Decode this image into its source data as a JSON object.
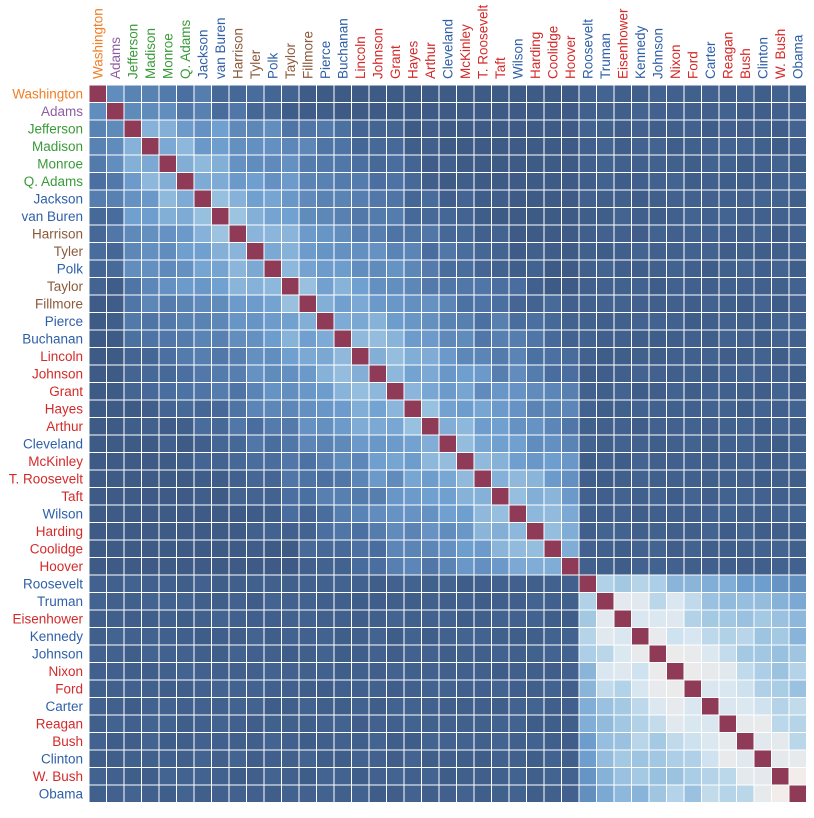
{
  "chart_data": {
    "type": "heatmap",
    "title": "",
    "xlabel": "",
    "ylabel": "",
    "grid": true,
    "legend": "none",
    "categories": [
      "Washington",
      "Adams",
      "Jefferson",
      "Madison",
      "Monroe",
      "Q. Adams",
      "Jackson",
      "van Buren",
      "Harrison",
      "Tyler",
      "Polk",
      "Taylor",
      "Fillmore",
      "Pierce",
      "Buchanan",
      "Lincoln",
      "Johnson",
      "Grant",
      "Hayes",
      "Arthur",
      "Cleveland",
      "McKinley",
      "T. Roosevelt",
      "Taft",
      "Wilson",
      "Harding",
      "Coolidge",
      "Hoover",
      "Roosevelt",
      "Truman",
      "Eisenhower",
      "Kennedy",
      "Johnson",
      "Nixon",
      "Ford",
      "Carter",
      "Reagan",
      "Bush",
      "Clinton",
      "W. Bush",
      "Obama"
    ],
    "party_of_each": [
      "none",
      "federalist",
      "dem-rep",
      "dem-rep",
      "dem-rep",
      "dem-rep",
      "democrat",
      "democrat",
      "whig",
      "whig",
      "democrat",
      "whig",
      "whig",
      "democrat",
      "democrat",
      "republican",
      "republican",
      "republican",
      "republican",
      "republican",
      "democrat",
      "republican",
      "republican",
      "republican",
      "democrat",
      "republican",
      "republican",
      "republican",
      "democrat",
      "democrat",
      "republican",
      "democrat",
      "democrat",
      "republican",
      "republican",
      "democrat",
      "republican",
      "republican",
      "democrat",
      "republican",
      "democrat"
    ],
    "party_colors": {
      "none": "#f07e26",
      "federalist": "#8e5ea2",
      "dem-rep": "#3a9a3a",
      "whig": "#8b5a3c",
      "democrat": "#2f5fa8",
      "republican": "#d42a2a"
    },
    "color_scale": {
      "stops": [
        0,
        0.2,
        0.45,
        0.62,
        0.75,
        0.85,
        1.0
      ],
      "colors": [
        "#3e5b86",
        "#4a6fa0",
        "#6f9fcf",
        "#a6cbe4",
        "#d8e7f1",
        "#f2ecea",
        "#f6c4a8"
      ],
      "diagonal_color": "#8f3a57",
      "grid_color": "#ffffff"
    },
    "similarity_groups": [
      {
        "from": 0,
        "to": 27,
        "intra": 0.6
      },
      {
        "from": 28,
        "to": 40,
        "intra": 0.72
      }
    ]
  }
}
